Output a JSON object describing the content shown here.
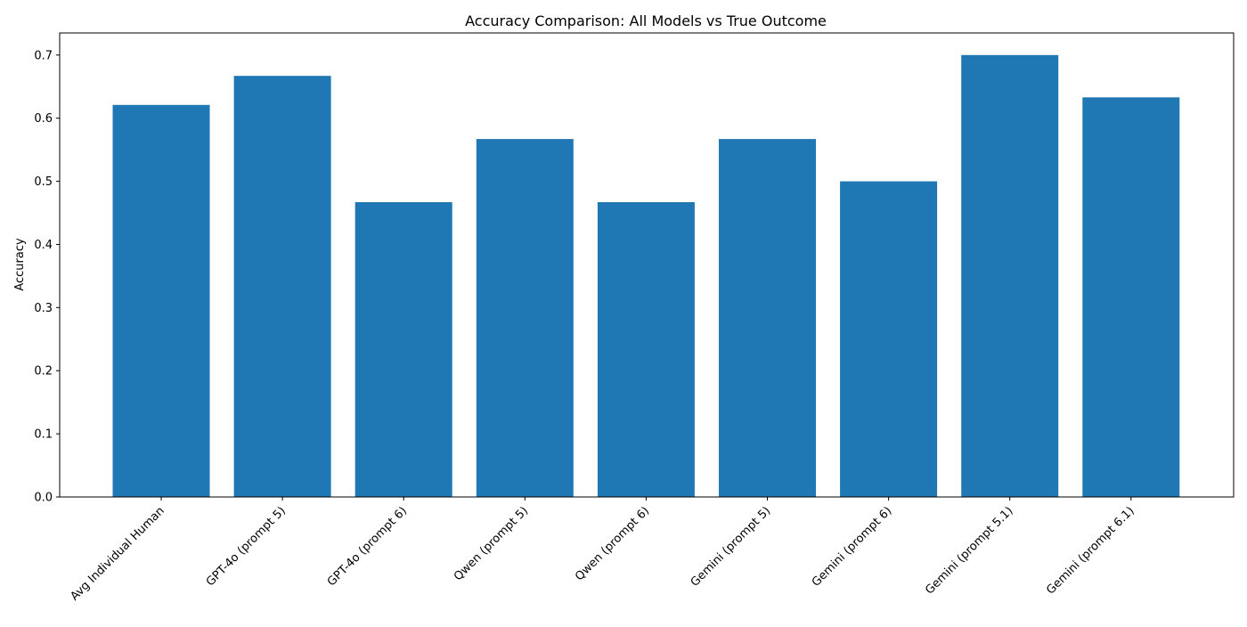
{
  "chart_data": {
    "type": "bar",
    "title": "Accuracy Comparison: All Models vs True Outcome",
    "xlabel": "",
    "ylabel": "Accuracy",
    "categories": [
      "Avg Individual Human",
      "GPT-4o (prompt 5)",
      "GPT-4o (prompt 6)",
      "Qwen (prompt 5)",
      "Qwen (prompt 6)",
      "Gemini (prompt 5)",
      "Gemini (prompt 6)",
      "Gemini (prompt 5.1)",
      "Gemini (prompt 6.1)"
    ],
    "values": [
      0.621,
      0.667,
      0.467,
      0.567,
      0.467,
      0.567,
      0.5,
      0.7,
      0.633
    ],
    "ylim": [
      0,
      0.735
    ],
    "yticks": [
      "0.0",
      "0.1",
      "0.2",
      "0.3",
      "0.4",
      "0.5",
      "0.6",
      "0.7"
    ],
    "grid": false,
    "bar_color": "#1f77b4"
  }
}
